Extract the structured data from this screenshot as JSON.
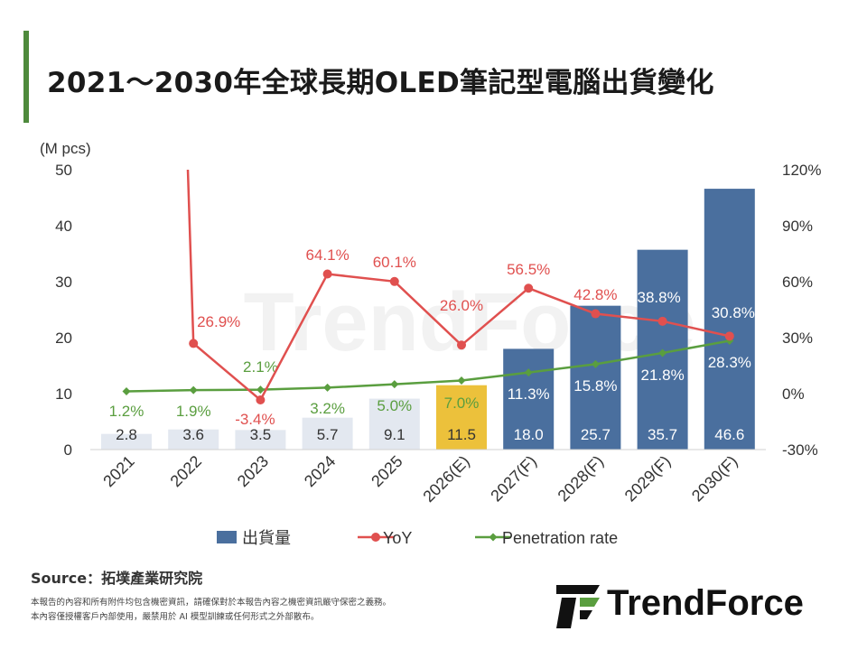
{
  "title": "2021～2030年全球長期OLED筆記型電腦出貨變化",
  "source": "Source：拓墣產業研究院",
  "disclaimer": [
    "本報告的內容和所有附件均包含機密資訊，請確保對於本報告內容之機密資訊嚴守保密之義務。",
    "本內容僅授權客戶內部使用，嚴禁用於 AI 模型訓練或任何形式之外部散布。"
  ],
  "logo_text": "TrendForce",
  "watermark_text": "TrendForce",
  "colors": {
    "bar": "#4a6f9e",
    "bar_light": "#e3e8f0",
    "bar_highlight": "#ecc13b",
    "yoy": "#e0504f",
    "penetration": "#5a9e3f",
    "title_accent": "#4e8a3c"
  },
  "chart_data": {
    "type": "bar",
    "categories": [
      "2021",
      "2022",
      "2023",
      "2024",
      "2025",
      "2026(E)",
      "2027(F)",
      "2028(F)",
      "2029(F)",
      "2030(F)"
    ],
    "series": [
      {
        "name": "出貨量",
        "type": "bar",
        "axis": "left",
        "values": [
          2.8,
          3.6,
          3.5,
          5.7,
          9.1,
          11.5,
          18.0,
          25.7,
          35.7,
          46.6
        ],
        "labels": [
          "2.8",
          "3.6",
          "3.5",
          "5.7",
          "9.1",
          "11.5",
          "18.0",
          "25.7",
          "35.7",
          "46.6"
        ]
      },
      {
        "name": "YoY",
        "type": "line",
        "axis": "right",
        "values": [
          null,
          26.9,
          -3.4,
          64.1,
          60.1,
          26.0,
          56.5,
          42.8,
          38.8,
          30.8
        ],
        "labels": [
          "",
          "26.9%",
          "-3.4%",
          "64.1%",
          "60.1%",
          "26.0%",
          "56.5%",
          "42.8%",
          "38.8%",
          "30.8%"
        ]
      },
      {
        "name": "Penetration rate",
        "type": "line",
        "axis": "right",
        "values": [
          1.2,
          1.9,
          2.1,
          3.2,
          5.0,
          7.0,
          11.3,
          15.8,
          21.8,
          28.3
        ],
        "labels": [
          "1.2%",
          "1.9%",
          "2.1%",
          "3.2%",
          "5.0%",
          "7.0%",
          "11.3%",
          "15.8%",
          "21.8%",
          "28.3%"
        ]
      }
    ],
    "yunit": "(M pcs)",
    "ylim": [
      0,
      50
    ],
    "yticks": [
      "0",
      "10",
      "20",
      "30",
      "40",
      "50"
    ],
    "y2lim": [
      -30,
      120
    ],
    "y2ticks": [
      "-30%",
      "0%",
      "30%",
      "60%",
      "90%",
      "120%"
    ],
    "light_bars": [
      "2021",
      "2022",
      "2023",
      "2024",
      "2025"
    ],
    "highlight_bar": "2026(E)",
    "legend_position": "bottom",
    "grid": false
  }
}
